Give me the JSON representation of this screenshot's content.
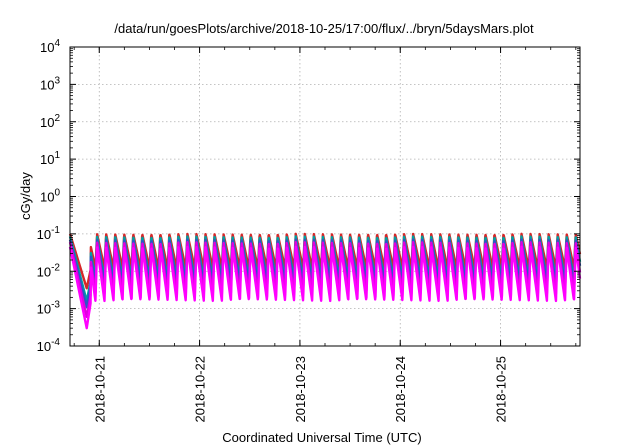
{
  "chart_data": {
    "type": "line",
    "title": "/data/run/goesPlots/archive/2018-10-25/17:00/flux/../bryn/5daysMars.plot",
    "xlabel": "Coordinated Universal Time (UTC)",
    "ylabel": "cGy/day",
    "x_scale": "time",
    "y_scale": "log",
    "xlim": [
      "2018-10-20T17:00",
      "2018-10-25T19:00"
    ],
    "ylim": [
      0.0001,
      10000
    ],
    "grid": true,
    "legend": "none",
    "x_ticks": [
      "2018-10-21",
      "2018-10-22",
      "2018-10-23",
      "2018-10-24",
      "2018-10-25"
    ],
    "y_ticks": [
      {
        "value": 0.0001,
        "mant": "10",
        "exp": "-4"
      },
      {
        "value": 0.001,
        "mant": "10",
        "exp": "-3"
      },
      {
        "value": 0.01,
        "mant": "10",
        "exp": "-2"
      },
      {
        "value": 0.1,
        "mant": "10",
        "exp": "-1"
      },
      {
        "value": 1,
        "mant": "10",
        "exp": "0"
      },
      {
        "value": 10,
        "mant": "10",
        "exp": "1"
      },
      {
        "value": 100,
        "mant": "10",
        "exp": "2"
      },
      {
        "value": 1000,
        "mant": "10",
        "exp": "3"
      },
      {
        "value": 10000,
        "mant": "10",
        "exp": "4"
      }
    ],
    "cycle": {
      "period_hours": 2.16,
      "first_peak": "2018-10-20T17:00"
    },
    "series": [
      {
        "color": "#d62728",
        "peak": 0.1,
        "trough": 0.012,
        "dip_min": 0.0035
      },
      {
        "color": "#00a0a0",
        "peak": 0.085,
        "trough": 0.006,
        "dip_min": 0.0016
      },
      {
        "color": "#2c54c8",
        "peak": 0.07,
        "trough": 0.0045,
        "dip_min": 0.0011
      },
      {
        "color": "#e000e0",
        "peak": 0.06,
        "trough": 0.0025,
        "dip_min": 0.0006
      },
      {
        "color": "#ff00ff",
        "peak": 0.045,
        "trough": 0.0016,
        "dip_min": 0.0003
      }
    ],
    "dip": {
      "start": "2018-10-20T17:00",
      "bottom": "2018-10-20T21:00",
      "end": "2018-10-20T22:00"
    }
  }
}
